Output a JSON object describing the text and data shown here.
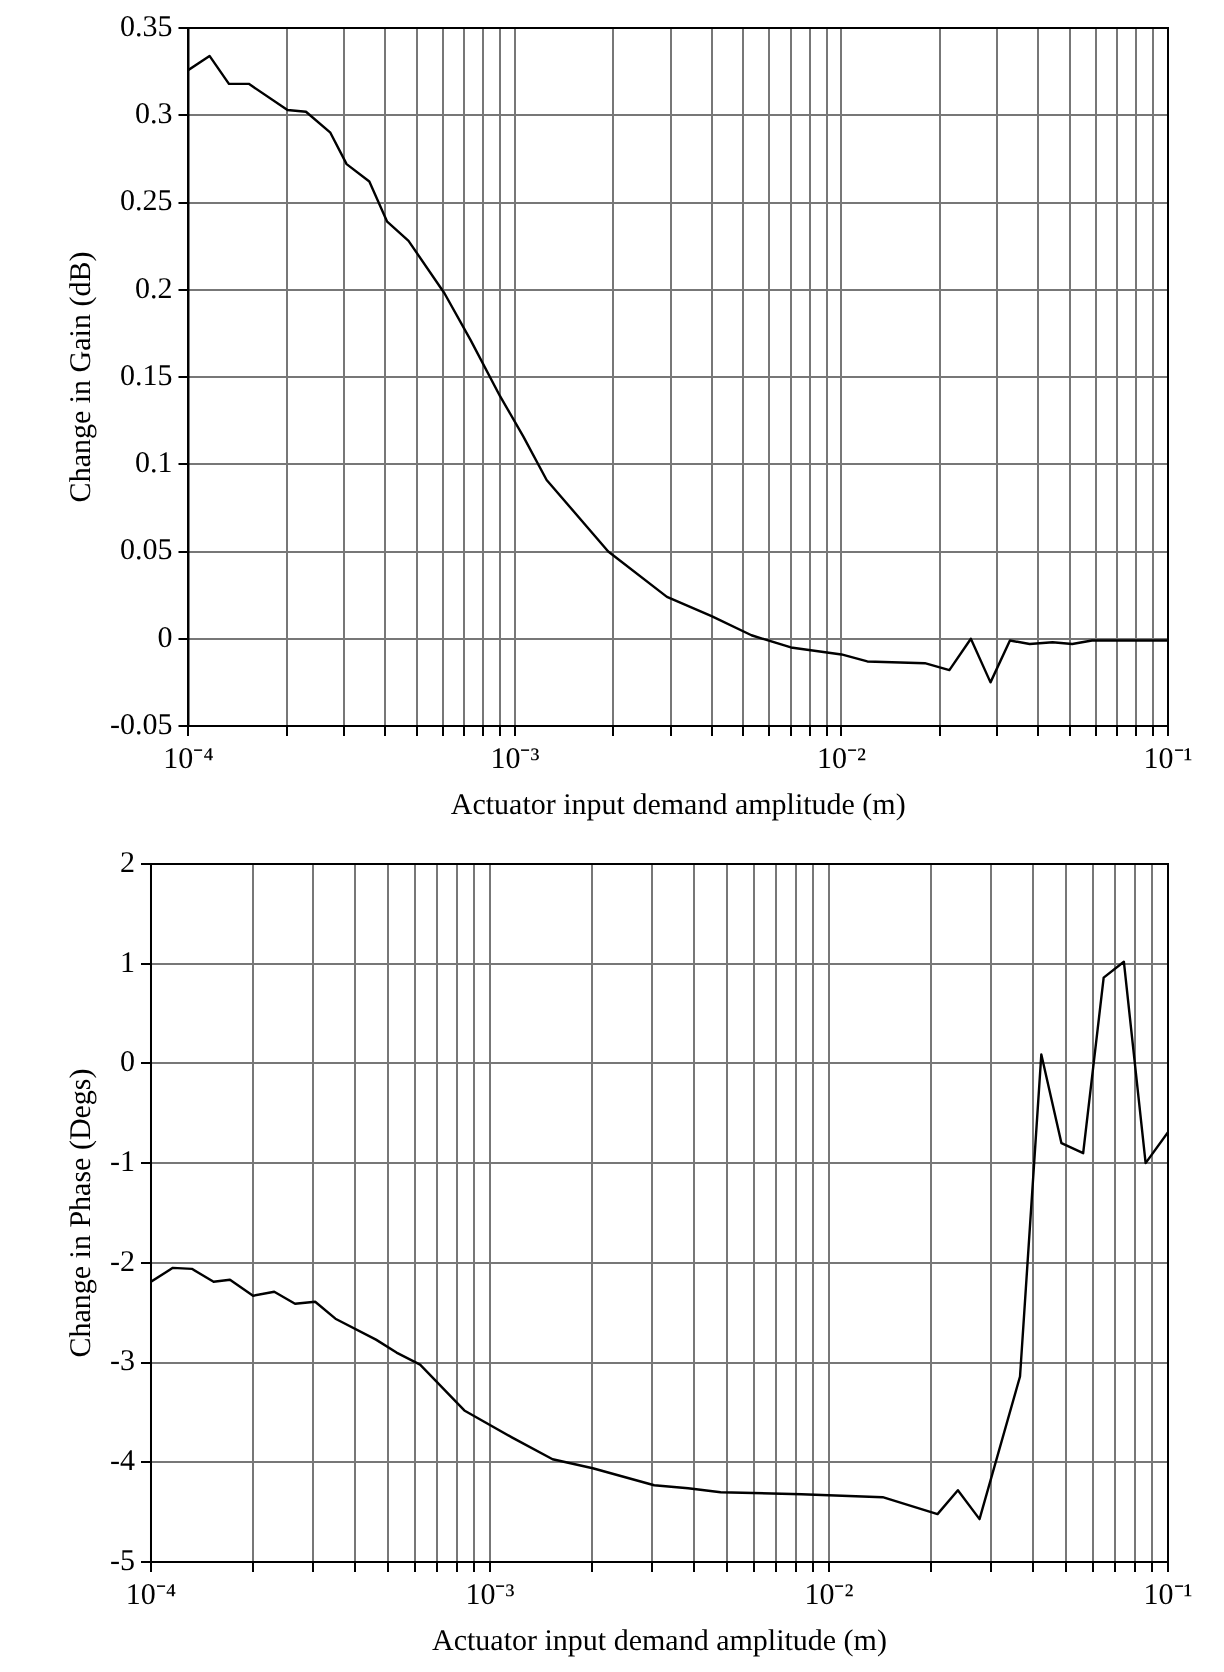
{
  "chart_data": [
    {
      "type": "line",
      "xlabel": "Actuator input demand amplitude (m)",
      "ylabel": "Change in Gain (dB)",
      "log": "x",
      "grid": true,
      "x": [
        0.0001,
        0.000116,
        0.000133,
        0.000153,
        0.000201,
        0.000229,
        0.000272,
        0.000305,
        0.000358,
        0.000406,
        0.000472,
        0.000608,
        0.000732,
        0.0009,
        0.00106,
        0.00125,
        0.00193,
        0.00292,
        0.004,
        0.0053,
        0.007,
        0.01,
        0.012,
        0.018,
        0.0214,
        0.0249,
        0.0286,
        0.0328,
        0.0377,
        0.0443,
        0.0509,
        0.0585,
        0.1
      ],
      "series": [
        {
          "color": "#000000",
          "values": [
            0.326,
            0.334,
            0.318,
            0.318,
            0.303,
            0.302,
            0.29,
            0.272,
            0.262,
            0.239,
            0.228,
            0.198,
            0.171,
            0.139,
            0.116,
            0.091,
            0.05,
            0.024,
            0.013,
            0.002,
            -0.005,
            -0.009,
            -0.013,
            -0.014,
            -0.018,
            0.0,
            -0.025,
            -0.001,
            -0.003,
            -0.002,
            -0.003,
            -0.001,
            -0.001
          ]
        }
      ],
      "xlim": [
        0.0001,
        0.1
      ],
      "ylim": [
        -0.05,
        0.35
      ],
      "xticks": [
        {
          "value": 0.0001,
          "label": "10⁻⁴"
        },
        {
          "value": 0.0002,
          "label": null
        },
        {
          "value": 0.0003,
          "label": null
        },
        {
          "value": 0.0004,
          "label": null
        },
        {
          "value": 0.0005,
          "label": null
        },
        {
          "value": 0.0006,
          "label": null
        },
        {
          "value": 0.0007,
          "label": null
        },
        {
          "value": 0.0008,
          "label": null
        },
        {
          "value": 0.0009,
          "label": null
        },
        {
          "value": 0.001,
          "label": "10⁻³"
        },
        {
          "value": 0.002,
          "label": null
        },
        {
          "value": 0.003,
          "label": null
        },
        {
          "value": 0.004,
          "label": null
        },
        {
          "value": 0.005,
          "label": null
        },
        {
          "value": 0.006,
          "label": null
        },
        {
          "value": 0.007,
          "label": null
        },
        {
          "value": 0.008,
          "label": null
        },
        {
          "value": 0.009,
          "label": null
        },
        {
          "value": 0.01,
          "label": "10⁻²"
        },
        {
          "value": 0.02,
          "label": null
        },
        {
          "value": 0.03,
          "label": null
        },
        {
          "value": 0.04,
          "label": null
        },
        {
          "value": 0.05,
          "label": null
        },
        {
          "value": 0.06,
          "label": null
        },
        {
          "value": 0.07,
          "label": null
        },
        {
          "value": 0.08,
          "label": null
        },
        {
          "value": 0.09,
          "label": null
        },
        {
          "value": 0.1,
          "label": "10⁻¹"
        }
      ],
      "yticks": [
        -0.05,
        0,
        0.05,
        0.1,
        0.15,
        0.2,
        0.25,
        0.3,
        0.35
      ]
    },
    {
      "type": "line",
      "xlabel": "Actuator input demand amplitude (m)",
      "ylabel": "Change in Phase (Degs)",
      "log": "x",
      "grid": true,
      "x": [
        0.0001,
        0.000116,
        0.000132,
        0.000153,
        0.000171,
        0.0002,
        0.000231,
        0.000266,
        0.000305,
        0.00035,
        0.000461,
        0.00053,
        0.000622,
        0.00084,
        0.00116,
        0.00153,
        0.00201,
        0.00305,
        0.00384,
        0.00479,
        0.0083,
        0.0144,
        0.0209,
        0.024,
        0.0278,
        0.0366,
        0.0423,
        0.0485,
        0.0562,
        0.0646,
        0.0741,
        0.0859,
        0.1
      ],
      "series": [
        {
          "color": "#000000",
          "values": [
            -2.19,
            -2.05,
            -2.06,
            -2.19,
            -2.17,
            -2.33,
            -2.29,
            -2.41,
            -2.39,
            -2.56,
            -2.77,
            -2.9,
            -3.02,
            -3.48,
            -3.75,
            -3.97,
            -4.06,
            -4.23,
            -4.26,
            -4.3,
            -4.32,
            -4.35,
            -4.52,
            -4.28,
            -4.57,
            -3.14,
            0.09,
            -0.8,
            -0.9,
            0.86,
            1.02,
            -1.0,
            -0.69
          ]
        }
      ],
      "xlim": [
        0.0001,
        0.1
      ],
      "ylim": [
        -5,
        2
      ],
      "xticks": [
        {
          "value": 0.0001,
          "label": "10⁻⁴"
        },
        {
          "value": 0.0002,
          "label": null
        },
        {
          "value": 0.0003,
          "label": null
        },
        {
          "value": 0.0004,
          "label": null
        },
        {
          "value": 0.0005,
          "label": null
        },
        {
          "value": 0.0006,
          "label": null
        },
        {
          "value": 0.0007,
          "label": null
        },
        {
          "value": 0.0008,
          "label": null
        },
        {
          "value": 0.0009,
          "label": null
        },
        {
          "value": 0.001,
          "label": "10⁻³"
        },
        {
          "value": 0.002,
          "label": null
        },
        {
          "value": 0.003,
          "label": null
        },
        {
          "value": 0.004,
          "label": null
        },
        {
          "value": 0.005,
          "label": null
        },
        {
          "value": 0.006,
          "label": null
        },
        {
          "value": 0.007,
          "label": null
        },
        {
          "value": 0.008,
          "label": null
        },
        {
          "value": 0.009,
          "label": null
        },
        {
          "value": 0.01,
          "label": "10⁻²"
        },
        {
          "value": 0.02,
          "label": null
        },
        {
          "value": 0.03,
          "label": null
        },
        {
          "value": 0.04,
          "label": null
        },
        {
          "value": 0.05,
          "label": null
        },
        {
          "value": 0.06,
          "label": null
        },
        {
          "value": 0.07,
          "label": null
        },
        {
          "value": 0.08,
          "label": null
        },
        {
          "value": 0.09,
          "label": null
        },
        {
          "value": 0.1,
          "label": "10⁻¹"
        }
      ],
      "yticks": [
        -5,
        -4,
        -3,
        -2,
        -1,
        0,
        1,
        2
      ]
    }
  ]
}
